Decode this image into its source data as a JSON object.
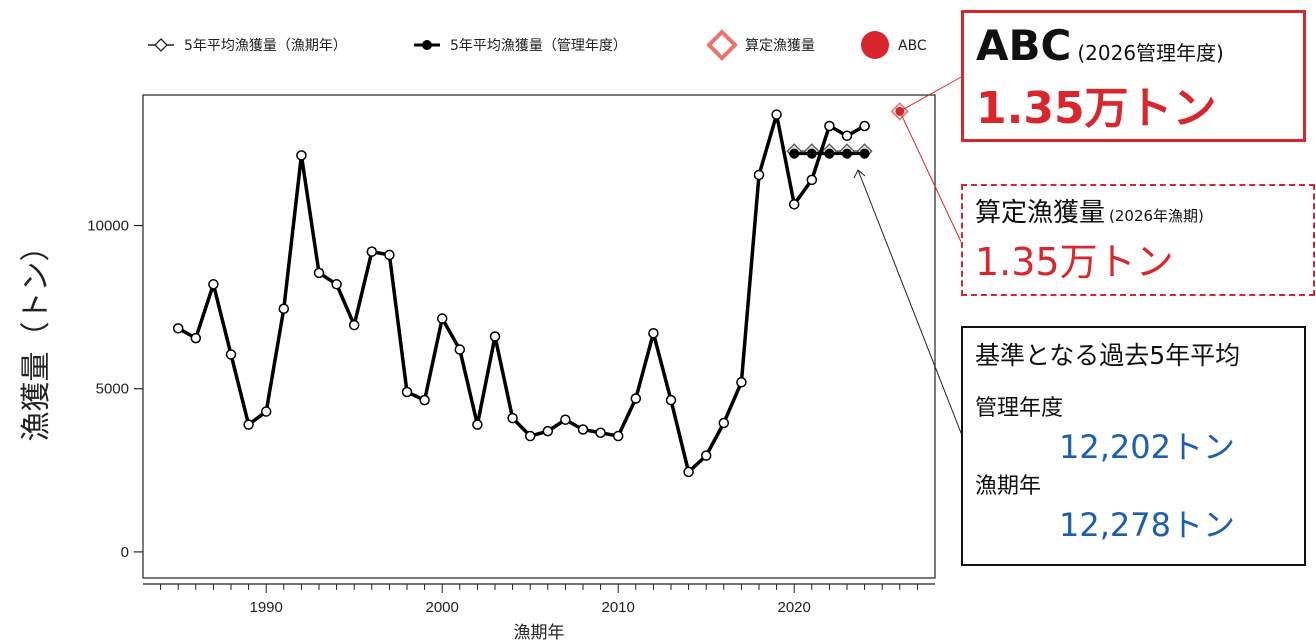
{
  "legend": [
    {
      "label": "5年平均漁獲量（漁期年）",
      "marker": "open-diamond-line",
      "color": "#222222"
    },
    {
      "label": "5年平均漁獲量（管理年度）",
      "marker": "filled-circle-line",
      "color": "#000000"
    },
    {
      "label": "算定漁獲量",
      "marker": "open-diamond",
      "color": "#e8736f"
    },
    {
      "label": "ABC",
      "marker": "filled-circle",
      "color": "#d9262c"
    }
  ],
  "axes": {
    "ylabel": "漁獲量（トン）",
    "xlabel": "漁期年",
    "yticks": [
      "0",
      "5000",
      "10000"
    ],
    "xticks": [
      "1990",
      "2000",
      "2010",
      "2020"
    ]
  },
  "chart_data": {
    "type": "line",
    "xlabel": "漁期年",
    "ylabel": "漁獲量（トン）",
    "xlim": [
      1983,
      2028
    ],
    "ylim": [
      -800,
      14000
    ],
    "grid": false,
    "legend_position": "top",
    "series": [
      {
        "name": "catch",
        "x": [
          1985,
          1986,
          1987,
          1988,
          1989,
          1990,
          1991,
          1992,
          1993,
          1994,
          1995,
          1996,
          1997,
          1998,
          1999,
          2000,
          2001,
          2002,
          2003,
          2004,
          2005,
          2006,
          2007,
          2008,
          2009,
          2010,
          2011,
          2012,
          2013,
          2014,
          2015,
          2016,
          2017,
          2018,
          2019,
          2020,
          2021,
          2022,
          2023,
          2024
        ],
        "y": [
          6850,
          6550,
          8200,
          6050,
          3900,
          4300,
          7450,
          12150,
          8550,
          8200,
          6950,
          9200,
          9100,
          4900,
          4650,
          7150,
          6200,
          3900,
          6600,
          4100,
          3550,
          3700,
          4050,
          3750,
          3650,
          3550,
          4700,
          6700,
          4650,
          2450,
          2950,
          3950,
          5200,
          11550,
          13400,
          10650,
          11400,
          13050,
          12750,
          13050
        ]
      },
      {
        "name": "5年平均漁獲量（漁期年）",
        "x": [
          2020,
          2021,
          2022,
          2023,
          2024
        ],
        "y": [
          12278,
          12278,
          12278,
          12278,
          12278
        ]
      },
      {
        "name": "5年平均漁獲量（管理年度）",
        "x": [
          2020,
          2021,
          2022,
          2023,
          2024
        ],
        "y": [
          12202,
          12202,
          12202,
          12202,
          12202
        ]
      },
      {
        "name": "算定漁獲量",
        "x": [
          2026
        ],
        "y": [
          13500
        ]
      },
      {
        "name": "ABC",
        "x": [
          2026
        ],
        "y": [
          13500
        ]
      }
    ]
  },
  "annotations": {
    "abc": {
      "title": "ABC",
      "sub": "(2026管理年度)",
      "value": "1.35万トン"
    },
    "calc": {
      "title": "算定漁獲量",
      "sub": "(2026年漁期)",
      "value": "1.35万トン"
    },
    "base": {
      "title": "基準となる過去5年平均",
      "mgmt_label": "管理年度",
      "mgmt_value": "12,202トン",
      "season_label": "漁期年",
      "season_value": "12,278トン"
    }
  }
}
